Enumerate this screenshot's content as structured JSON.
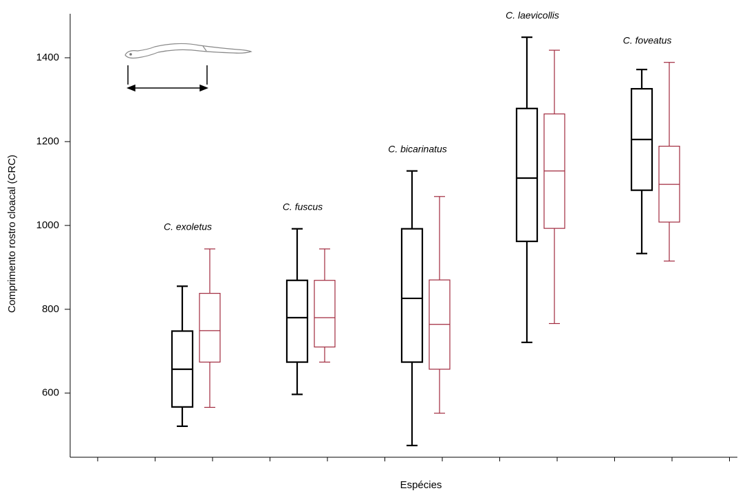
{
  "chart_data": {
    "type": "box",
    "y_label": "Comprimento rostro cloacal (CRC)",
    "x_label": "Espécies",
    "categories": [
      "C. exoletus",
      "C. fuscus",
      "C. bicarinatus",
      "C. laevicollis",
      "C. foveatus"
    ],
    "ylim": [
      447,
      1505
    ],
    "yticks": [
      600,
      800,
      1000,
      1200,
      1400
    ],
    "grid": false,
    "series": [
      {
        "color": "#000000",
        "min": [
          521,
          597,
          475,
          721,
          933
        ],
        "q1": [
          567,
          674,
          674,
          962,
          1084
        ],
        "median": [
          657,
          780,
          826,
          1113,
          1205
        ],
        "q3": [
          748,
          869,
          992,
          1279,
          1326
        ],
        "max": [
          855,
          992,
          1130,
          1449,
          1372
        ]
      },
      {
        "color": "#a0283c",
        "min": [
          566,
          674,
          552,
          766,
          915
        ],
        "q1": [
          674,
          710,
          657,
          993,
          1008
        ],
        "median": [
          749,
          780,
          764,
          1130,
          1098
        ],
        "q3": [
          838,
          869,
          870,
          1266,
          1189
        ],
        "max": [
          944,
          944,
          1069,
          1418,
          1389
        ]
      }
    ]
  }
}
